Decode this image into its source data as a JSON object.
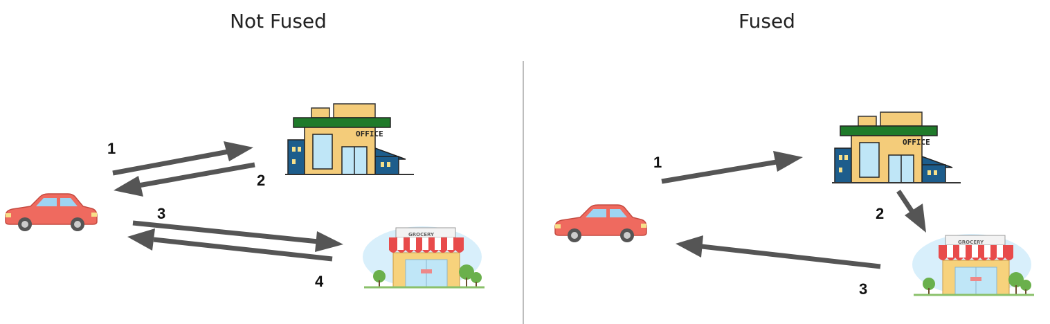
{
  "left_panel": {
    "title": "Not Fused",
    "steps": [
      "1",
      "2",
      "3",
      "4"
    ]
  },
  "right_panel": {
    "title": "Fused",
    "steps": [
      "1",
      "2",
      "3"
    ]
  },
  "icons": {
    "car": "car-icon",
    "office": "office-building-icon",
    "grocery": "grocery-store-icon"
  },
  "signs": {
    "office": "OFFICE",
    "grocery": "GROCERY"
  },
  "colors": {
    "arrow": "#555555",
    "car_body": "#ef6a5f",
    "office_roof": "#1f7a2a",
    "office_wall": "#f4cc7a",
    "office_side": "#1d5d8c",
    "grocery_awning_red": "#e84b4b",
    "grocery_wall": "#f7d27c",
    "tree": "#6ab04c",
    "sky": "#d8effb"
  }
}
